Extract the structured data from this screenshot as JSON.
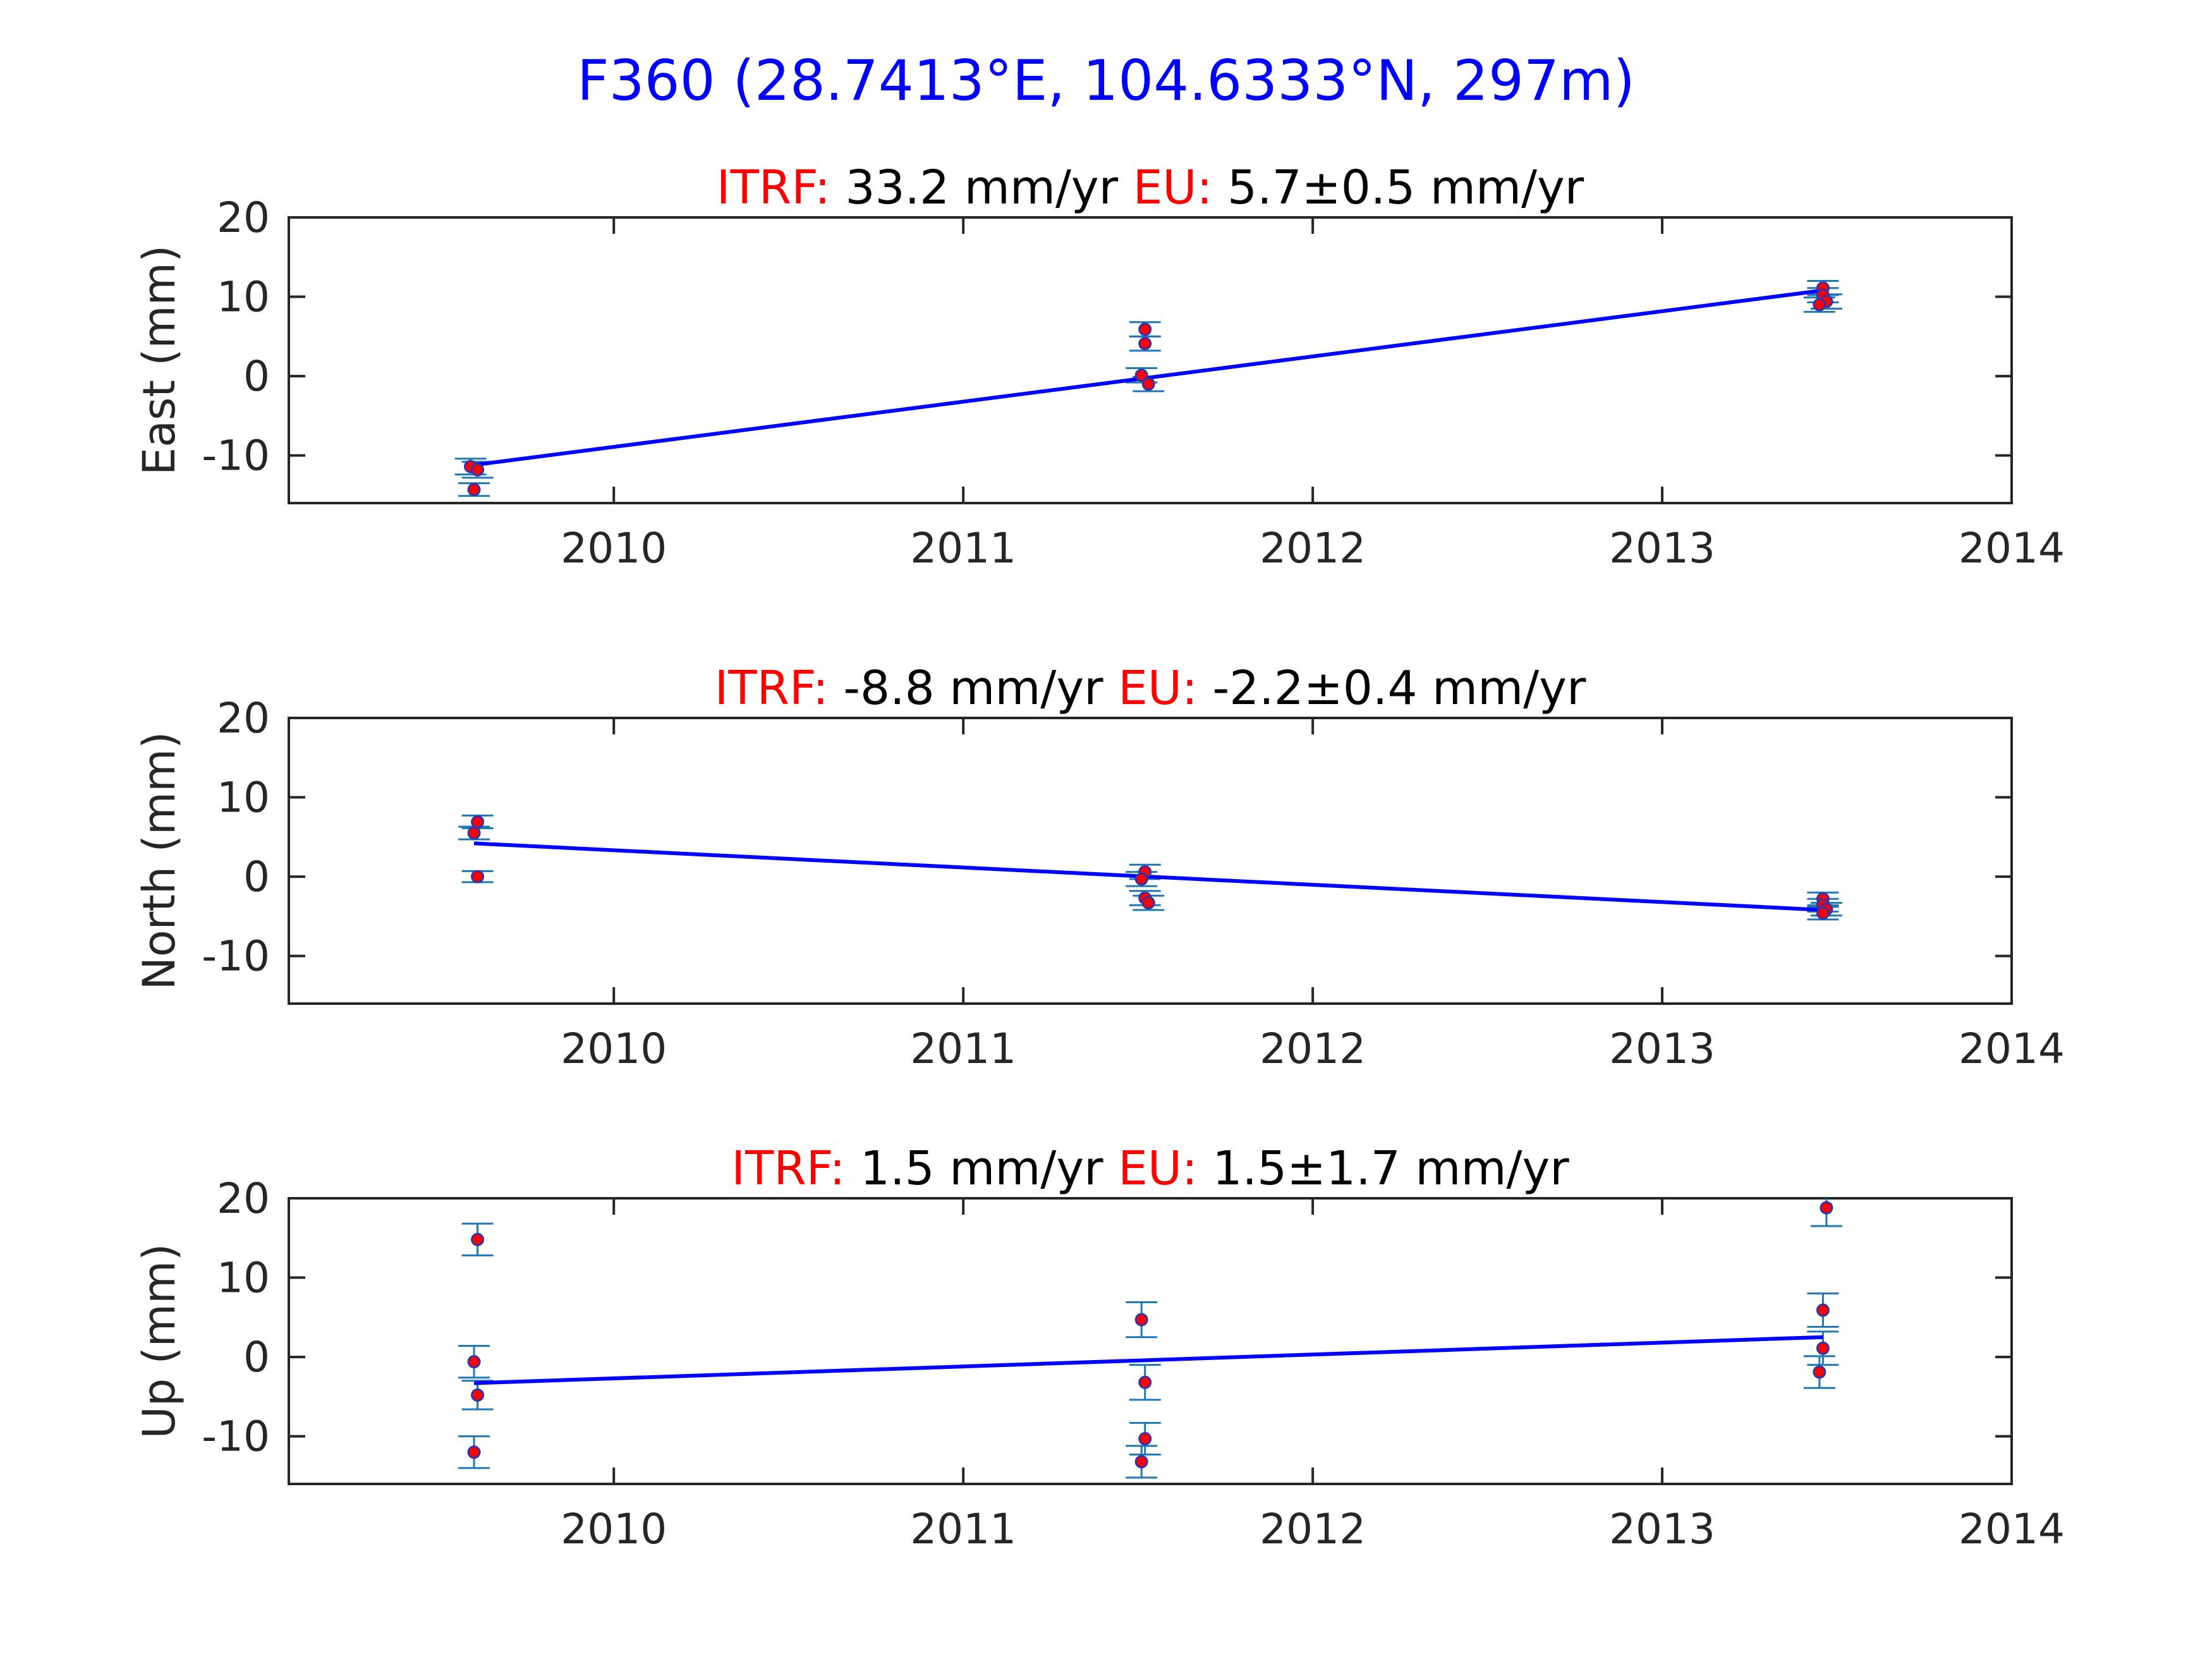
{
  "figure": {
    "title": "F360 (28.7413°E, 104.6333°N, 297m)",
    "title_color": "#0000ff"
  },
  "colors": {
    "fit_line": "#0000ff",
    "marker_face": "#ff0000",
    "marker_edge": "#3333aa",
    "errorbar": "#1f77b4",
    "label_red": "#ff0000",
    "axis": "#262626"
  },
  "chart_data": [
    {
      "type": "scatter",
      "ylabel": "East (mm)",
      "xlim": [
        2009.07,
        2014
      ],
      "ylim": [
        -16,
        20
      ],
      "xticks": [
        2010,
        2011,
        2012,
        2013,
        2014
      ],
      "yticks": [
        -10,
        0,
        10,
        20
      ],
      "grid": false,
      "rate_itrf_label": "ITRF:",
      "rate_itrf_value": "33.2 mm/yr",
      "rate_eu_label": "EU:",
      "rate_eu_value": "5.7±0.5 mm/yr",
      "fit": {
        "x": [
          2009.6,
          2013.46
        ],
        "y": [
          -11.2,
          10.8
        ]
      },
      "points": [
        {
          "x": 2009.59,
          "y": -11.4,
          "err": 1.0
        },
        {
          "x": 2009.61,
          "y": -11.8,
          "err": 1.0
        },
        {
          "x": 2009.6,
          "y": -14.3,
          "err": 0.8
        },
        {
          "x": 2011.52,
          "y": 5.9,
          "err": 0.9
        },
        {
          "x": 2011.52,
          "y": 4.1,
          "err": 0.9
        },
        {
          "x": 2011.51,
          "y": 0.1,
          "err": 0.9
        },
        {
          "x": 2011.53,
          "y": -1.0,
          "err": 0.9
        },
        {
          "x": 2013.46,
          "y": 11.1,
          "err": 0.9
        },
        {
          "x": 2013.46,
          "y": 10.2,
          "err": 0.9
        },
        {
          "x": 2013.47,
          "y": 9.4,
          "err": 0.9
        },
        {
          "x": 2013.45,
          "y": 9.0,
          "err": 0.9
        }
      ]
    },
    {
      "type": "scatter",
      "ylabel": "North (mm)",
      "xlim": [
        2009.07,
        2014
      ],
      "ylim": [
        -16,
        20
      ],
      "xticks": [
        2010,
        2011,
        2012,
        2013,
        2014
      ],
      "yticks": [
        -10,
        0,
        10,
        20
      ],
      "grid": false,
      "rate_itrf_label": "ITRF:",
      "rate_itrf_value": "-8.8 mm/yr",
      "rate_eu_label": "EU:",
      "rate_eu_value": "-2.2±0.4 mm/yr",
      "fit": {
        "x": [
          2009.6,
          2013.46
        ],
        "y": [
          4.2,
          -4.2
        ]
      },
      "points": [
        {
          "x": 2009.61,
          "y": 6.9,
          "err": 0.8
        },
        {
          "x": 2009.6,
          "y": 5.5,
          "err": 0.8
        },
        {
          "x": 2009.61,
          "y": 0.0,
          "err": 0.7
        },
        {
          "x": 2011.52,
          "y": 0.6,
          "err": 0.9
        },
        {
          "x": 2011.51,
          "y": -0.3,
          "err": 0.9
        },
        {
          "x": 2011.52,
          "y": -2.7,
          "err": 0.9
        },
        {
          "x": 2011.53,
          "y": -3.3,
          "err": 0.9
        },
        {
          "x": 2013.46,
          "y": -2.8,
          "err": 0.8
        },
        {
          "x": 2013.46,
          "y": -3.6,
          "err": 0.8
        },
        {
          "x": 2013.47,
          "y": -4.1,
          "err": 0.8
        },
        {
          "x": 2013.46,
          "y": -4.6,
          "err": 0.8
        }
      ]
    },
    {
      "type": "scatter",
      "ylabel": "Up (mm)",
      "xlim": [
        2009.07,
        2014
      ],
      "ylim": [
        -16,
        20
      ],
      "xticks": [
        2010,
        2011,
        2012,
        2013,
        2014
      ],
      "yticks": [
        -10,
        0,
        10,
        20
      ],
      "grid": false,
      "rate_itrf_label": "ITRF:",
      "rate_itrf_value": "1.5 mm/yr",
      "rate_eu_label": "EU:",
      "rate_eu_value": "1.5±1.7 mm/yr",
      "fit": {
        "x": [
          2009.6,
          2013.46
        ],
        "y": [
          -3.3,
          2.5
        ]
      },
      "points": [
        {
          "x": 2009.61,
          "y": 14.8,
          "err": 2.0
        },
        {
          "x": 2009.6,
          "y": -0.6,
          "err": 2.0
        },
        {
          "x": 2009.61,
          "y": -4.8,
          "err": 1.8
        },
        {
          "x": 2009.6,
          "y": -12.0,
          "err": 2.0
        },
        {
          "x": 2011.51,
          "y": 4.7,
          "err": 2.2
        },
        {
          "x": 2011.52,
          "y": -3.2,
          "err": 2.2
        },
        {
          "x": 2011.52,
          "y": -10.3,
          "err": 2.0
        },
        {
          "x": 2011.51,
          "y": -13.2,
          "err": 2.0
        },
        {
          "x": 2013.47,
          "y": 18.8,
          "err": 2.3
        },
        {
          "x": 2013.46,
          "y": 5.9,
          "err": 2.1
        },
        {
          "x": 2013.46,
          "y": 1.1,
          "err": 2.1
        },
        {
          "x": 2013.45,
          "y": -1.9,
          "err": 2.0
        }
      ]
    }
  ]
}
